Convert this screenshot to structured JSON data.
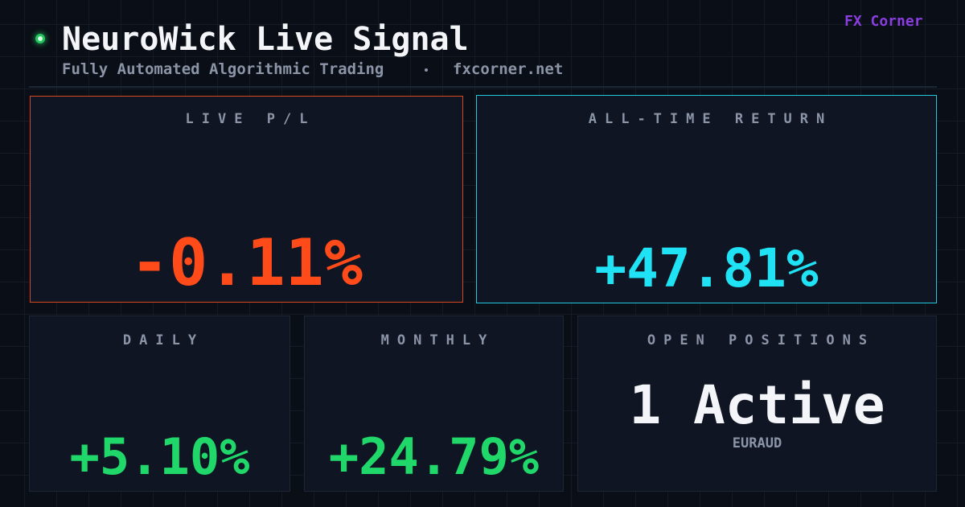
{
  "header": {
    "title": "NeuroWick Live Signal",
    "subtitle": "Fully Automated Algorithmic Trading",
    "site": "fxcorner.net",
    "brand": "FX Corner"
  },
  "cards": [
    {
      "label": "LIVE P/L",
      "value": "-0.11%"
    },
    {
      "label": "ALL-TIME RETURN",
      "value": "+47.81%"
    },
    {
      "label": "DAILY",
      "value": "+5.10%"
    },
    {
      "label": "MONTHLY",
      "value": "+24.79%"
    },
    {
      "label": "OPEN POSITIONS",
      "value": "1 Active",
      "detail": "EURAUD"
    }
  ]
}
